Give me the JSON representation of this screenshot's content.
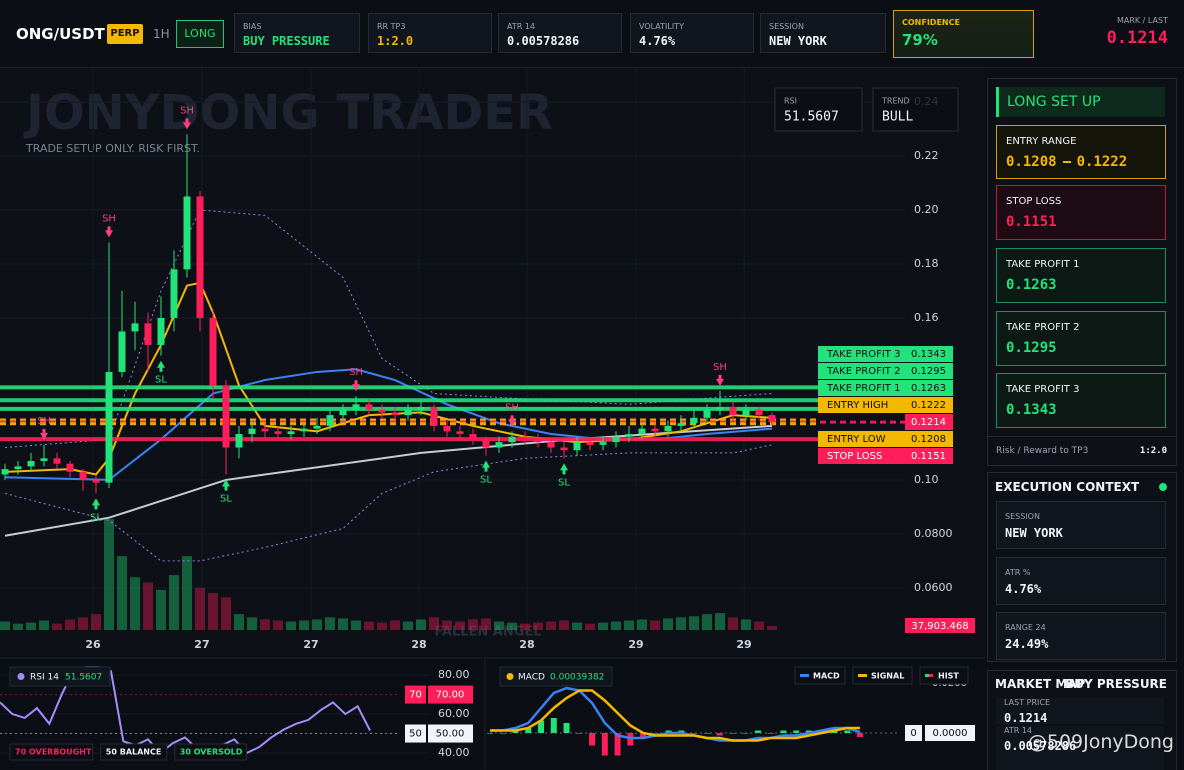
{
  "header": {
    "symbol": "ONG/USDT",
    "badge": "PERP",
    "timeframe": "1H",
    "side": "LONG",
    "stats": [
      {
        "label": "BIAS",
        "value": "BUY PRESSURE"
      },
      {
        "label": "RR TP3",
        "value": "1:2.0"
      },
      {
        "label": "ATR 14",
        "value": "0.00578286"
      },
      {
        "label": "VOLATILITY",
        "value": "4.76%"
      },
      {
        "label": "SESSION",
        "value": "NEW YORK"
      }
    ],
    "confidence": {
      "label": "CONFIDENCE",
      "value": "79%"
    },
    "mark": {
      "label": "MARK / LAST",
      "value": "0.1214"
    }
  },
  "watermark": {
    "title": "JONYDONG TRADER",
    "subtitle": "TRADE SETUP ONLY. RISK FIRST.",
    "footer": "FALLEN ANGEL",
    "corner": "@509JonyDong"
  },
  "overlay": [
    {
      "label": "RSI",
      "value": "51.5607"
    },
    {
      "label": "TREND",
      "value": "BULL"
    }
  ],
  "chart_data": [
    {
      "type": "candlestick",
      "up_color": "#22e37a",
      "down_color": "#ff1e5a",
      "grid": true,
      "open": [
        0.102,
        0.104,
        0.105,
        0.107,
        0.108,
        0.106,
        0.103,
        0.1,
        0.099,
        0.14,
        0.155,
        0.158,
        0.15,
        0.16,
        0.178,
        0.205,
        0.16,
        0.135,
        0.112,
        0.117,
        0.119,
        0.118,
        0.117,
        0.118,
        0.119,
        0.12,
        0.124,
        0.126,
        0.128,
        0.126,
        0.125,
        0.124,
        0.126,
        0.127,
        0.12,
        0.118,
        0.117,
        0.115,
        0.112,
        0.114,
        0.116,
        0.115,
        0.114,
        0.112,
        0.111,
        0.114,
        0.113,
        0.114,
        0.116,
        0.117,
        0.119,
        0.118,
        0.12,
        0.121,
        0.123,
        0.126,
        0.127,
        0.124,
        0.126,
        0.124
      ],
      "high": [
        0.106,
        0.107,
        0.11,
        0.113,
        0.11,
        0.107,
        0.104,
        0.102,
        0.188,
        0.17,
        0.166,
        0.162,
        0.168,
        0.185,
        0.228,
        0.207,
        0.163,
        0.137,
        0.12,
        0.122,
        0.121,
        0.12,
        0.12,
        0.121,
        0.123,
        0.126,
        0.128,
        0.131,
        0.13,
        0.128,
        0.127,
        0.128,
        0.13,
        0.128,
        0.122,
        0.12,
        0.119,
        0.116,
        0.116,
        0.118,
        0.118,
        0.117,
        0.115,
        0.114,
        0.116,
        0.116,
        0.116,
        0.118,
        0.12,
        0.121,
        0.121,
        0.122,
        0.124,
        0.126,
        0.128,
        0.133,
        0.129,
        0.128,
        0.127,
        0.125
      ],
      "low": [
        0.1,
        0.102,
        0.103,
        0.105,
        0.104,
        0.101,
        0.096,
        0.095,
        0.097,
        0.138,
        0.148,
        0.14,
        0.146,
        0.155,
        0.175,
        0.155,
        0.13,
        0.102,
        0.108,
        0.114,
        0.115,
        0.115,
        0.115,
        0.116,
        0.117,
        0.118,
        0.122,
        0.124,
        0.124,
        0.123,
        0.122,
        0.122,
        0.124,
        0.118,
        0.116,
        0.115,
        0.113,
        0.109,
        0.11,
        0.112,
        0.113,
        0.112,
        0.11,
        0.108,
        0.109,
        0.111,
        0.111,
        0.112,
        0.114,
        0.115,
        0.116,
        0.116,
        0.118,
        0.119,
        0.121,
        0.124,
        0.122,
        0.122,
        0.122,
        0.12
      ],
      "close": [
        0.104,
        0.105,
        0.107,
        0.108,
        0.106,
        0.103,
        0.1,
        0.099,
        0.14,
        0.155,
        0.158,
        0.15,
        0.16,
        0.178,
        0.205,
        0.16,
        0.135,
        0.112,
        0.117,
        0.119,
        0.118,
        0.117,
        0.118,
        0.119,
        0.12,
        0.124,
        0.126,
        0.128,
        0.126,
        0.125,
        0.124,
        0.126,
        0.127,
        0.12,
        0.118,
        0.117,
        0.115,
        0.112,
        0.114,
        0.116,
        0.115,
        0.114,
        0.112,
        0.111,
        0.114,
        0.113,
        0.114,
        0.116,
        0.117,
        0.119,
        0.118,
        0.12,
        0.121,
        0.123,
        0.126,
        0.127,
        0.124,
        0.126,
        0.124,
        0.1214
      ],
      "volume": [
        80000,
        60000,
        70000,
        90000,
        60000,
        100000,
        120000,
        150000,
        1050000,
        700000,
        500000,
        450000,
        380000,
        520000,
        700000,
        400000,
        350000,
        310000,
        150000,
        120000,
        100000,
        90000,
        80000,
        90000,
        100000,
        120000,
        110000,
        90000,
        80000,
        70000,
        90000,
        80000,
        100000,
        120000,
        90000,
        80000,
        100000,
        110000,
        80000,
        70000,
        60000,
        70000,
        80000,
        90000,
        70000,
        60000,
        70000,
        80000,
        90000,
        100000,
        90000,
        110000,
        120000,
        130000,
        150000,
        160000,
        120000,
        100000,
        80000,
        37903.468
      ],
      "last_volume_label": "37,903.468",
      "vlim": [
        0,
        1800000
      ],
      "xlim": [
        -0.385,
        69.23
      ],
      "xticks": [
        {
          "value": 6.77,
          "label": "26"
        },
        {
          "value": 15.15,
          "label": "27"
        },
        {
          "value": 23.54,
          "label": "27"
        },
        {
          "value": 31.85,
          "label": "28"
        },
        {
          "value": 40.15,
          "label": "28"
        },
        {
          "value": 48.54,
          "label": "29"
        },
        {
          "value": 56.85,
          "label": "29"
        }
      ],
      "ylim": [
        0.0444,
        0.2526
      ],
      "yticks": [
        0.24,
        0.22,
        {
          "value": 0.2,
          "label": "0.20"
        },
        0.18,
        0.16,
        {
          "value": 0.1,
          "label": "0.10"
        },
        {
          "value": 0.08,
          "label": "0.0800"
        },
        {
          "value": 0.06,
          "label": "0.0600"
        }
      ],
      "lines": [
        {
          "color": "#9b7bea",
          "dashed": true,
          "x": [
            0,
            8,
            12,
            15,
            20,
            26,
            29,
            33,
            40,
            48,
            56,
            59
          ],
          "values": [
            0.112,
            0.115,
            0.17,
            0.2,
            0.198,
            0.175,
            0.145,
            0.132,
            0.13,
            0.128,
            0.131,
            0.132
          ]
        },
        {
          "color": "#9b7bea",
          "dashed": true,
          "x": [
            0,
            8,
            12,
            15,
            20,
            26,
            29,
            33,
            40,
            48,
            56,
            59
          ],
          "values": [
            0.095,
            0.085,
            0.07,
            0.07,
            0.075,
            0.082,
            0.095,
            0.103,
            0.108,
            0.11,
            0.11,
            0.113
          ]
        },
        {
          "color": "#c9ccd3",
          "dashed": false,
          "x": [
            0,
            8,
            17,
            32,
            43,
            59
          ],
          "values": [
            0.0793,
            0.086,
            0.1,
            0.11,
            0.1148,
            0.12
          ]
        },
        {
          "color": "#3b82f6",
          "dashed": false,
          "x": [
            0,
            8,
            12,
            16,
            20,
            24,
            27,
            30,
            34,
            38,
            42,
            46,
            50,
            54,
            59
          ],
          "values": [
            0.101,
            0.1,
            0.115,
            0.132,
            0.137,
            0.14,
            0.141,
            0.137,
            0.128,
            0.121,
            0.117,
            0.115,
            0.115,
            0.117,
            0.119
          ]
        },
        {
          "color": "#f5b800",
          "dashed": false,
          "x": [
            0,
            5,
            7,
            8,
            10,
            12,
            14,
            15,
            16,
            18,
            20,
            24,
            28,
            32,
            36,
            40,
            44,
            48,
            52,
            56,
            59
          ],
          "values": [
            0.103,
            0.104,
            0.102,
            0.108,
            0.132,
            0.15,
            0.172,
            0.173,
            0.162,
            0.135,
            0.12,
            0.118,
            0.124,
            0.125,
            0.12,
            0.116,
            0.114,
            0.115,
            0.118,
            0.124,
            0.123
          ]
        }
      ],
      "levels": [
        {
          "label": "TAKE PROFIT 3",
          "value": 0.1343,
          "color": "#22e37a",
          "dashed": false
        },
        {
          "label": "TAKE PROFIT 2",
          "value": 0.1295,
          "color": "#22e37a",
          "dashed": false
        },
        {
          "label": "TAKE PROFIT 1",
          "value": 0.1263,
          "color": "#22e37a",
          "dashed": false
        },
        {
          "label": "ENTRY HIGH",
          "value": 0.1222,
          "color": "#f5b800",
          "dashed": true
        },
        {
          "value": 0.1214,
          "color": "#ff1e5a",
          "dashed": true
        },
        {
          "label": "ENTRY LOW",
          "value": 0.1208,
          "color": "#f5b800",
          "dashed": true
        },
        {
          "label": "STOP LOSS",
          "value": 0.1151,
          "color": "#ff1e5a",
          "dashed": false
        }
      ],
      "markers": [
        {
          "label": "SH",
          "index": 3
        },
        {
          "label": "SL",
          "index": 7
        },
        {
          "label": "SH",
          "index": 8
        },
        {
          "label": "SL",
          "index": 12
        },
        {
          "label": "SH",
          "index": 14
        },
        {
          "label": "SL",
          "index": 17
        },
        {
          "label": "SH",
          "index": 27
        },
        {
          "label": "SL",
          "index": 37
        },
        {
          "label": "SH",
          "index": 39
        },
        {
          "label": "SL",
          "index": 43
        },
        {
          "label": "SH",
          "index": 55
        }
      ]
    },
    {
      "type": "line",
      "title": "RSI 14",
      "value_label": "51.5607",
      "color": "#a78bfa",
      "values": [
        66,
        60,
        58,
        63,
        55,
        70,
        83,
        84,
        84,
        82,
        46,
        44,
        47,
        40,
        45,
        48,
        42,
        38,
        44,
        47,
        40,
        43,
        48,
        52,
        55,
        57,
        62,
        66,
        60,
        64,
        51.5607
      ],
      "ylim": [
        31.8,
        86.2
      ],
      "yticks": [
        {
          "value": 80,
          "label": "80.00"
        },
        {
          "value": 60,
          "label": "60.00"
        },
        {
          "value": 40,
          "label": "40.00"
        }
      ],
      "levels": [
        {
          "tag": "70",
          "value": 70,
          "label": "70.00",
          "color": "#ff1e5a"
        },
        {
          "tag": "50",
          "value": 50,
          "label": "50.00",
          "color": "#f1f5f9"
        }
      ],
      "legend": [
        {
          "text": "70 OVERBOUGHT",
          "color": "#ff1e5a"
        },
        {
          "text": "50 BALANCE",
          "color": "#f1f5f9"
        },
        {
          "text": "30 OVERSOLD",
          "color": "#22e37a"
        }
      ]
    },
    {
      "type": "macd",
      "title": "MACD",
      "value_label": "0.00039382",
      "series": [
        {
          "name": "MACD",
          "color": "#3b82f6",
          "values": [
            0.001,
            0.001,
            0.002,
            0.004,
            0.01,
            0.016,
            0.018,
            0.017,
            0.012,
            0.004,
            -0.001,
            -0.002,
            -0.002,
            -0.001,
            0,
            0,
            -0.001,
            -0.002,
            -0.003,
            -0.003,
            -0.003,
            -0.002,
            -0.002,
            -0.001,
            -0.001,
            0,
            0.001,
            0.002,
            0.002,
            0.00039382
          ]
        },
        {
          "name": "SIGNAL",
          "color": "#f5b800",
          "values": [
            0.001,
            0.001,
            0.001,
            0.002,
            0.005,
            0.01,
            0.014,
            0.017,
            0.017,
            0.013,
            0.008,
            0.003,
            0,
            -0.001,
            -0.001,
            -0.001,
            -0.001,
            -0.002,
            -0.002,
            -0.003,
            -0.003,
            -0.003,
            -0.002,
            -0.002,
            -0.002,
            -0.001,
            0,
            0.001,
            0.002,
            0.002
          ]
        },
        {
          "name": "HIST",
          "color": "#22e37a",
          "down_color": "#ff1e5a",
          "values": [
            0,
            0,
            0.001,
            0.002,
            0.005,
            0.006,
            0.004,
            0,
            -0.005,
            -0.009,
            -0.009,
            -0.005,
            -0.002,
            0,
            0.001,
            0.001,
            0,
            0,
            -0.001,
            0,
            0,
            0.001,
            0,
            0.001,
            0.001,
            0.001,
            0.001,
            0.001,
            0.001,
            -0.0016
          ]
        }
      ],
      "ylim": [
        -0.0144,
        0.028
      ],
      "yticks": [
        {
          "value": 0.02,
          "label": "0.0200"
        }
      ],
      "zero": {
        "tag": "0",
        "value": 0,
        "label": "0.0000"
      }
    }
  ],
  "panel": {
    "setup": {
      "title": "LONG SET UP",
      "entry": {
        "label": "ENTRY RANGE",
        "low": "0.1208",
        "high": "0.1222"
      },
      "cards": [
        {
          "label": "STOP LOSS",
          "value": "0.1151"
        },
        {
          "label": "TAKE PROFIT 1",
          "value": "0.1263"
        },
        {
          "label": "TAKE PROFIT 2",
          "value": "0.1295"
        },
        {
          "label": "TAKE PROFIT 3",
          "value": "0.1343"
        }
      ],
      "rr": {
        "label": "Risk / Reward to TP3",
        "value": "1:2.0"
      }
    },
    "context": {
      "title": "EXECUTION CONTEXT",
      "items": [
        {
          "label": "SESSION",
          "value": "NEW YORK"
        },
        {
          "label": "ATR %",
          "value": "4.76%"
        },
        {
          "label": "RANGE 24",
          "value": "24.49%"
        }
      ]
    },
    "market_map": {
      "title": "MARKET MAP",
      "bias": "BUY PRESSURE",
      "items": [
        {
          "label": "LAST PRICE",
          "value": "0.1214"
        },
        {
          "label": "ATR 14",
          "value": "0.00578286"
        }
      ]
    }
  }
}
